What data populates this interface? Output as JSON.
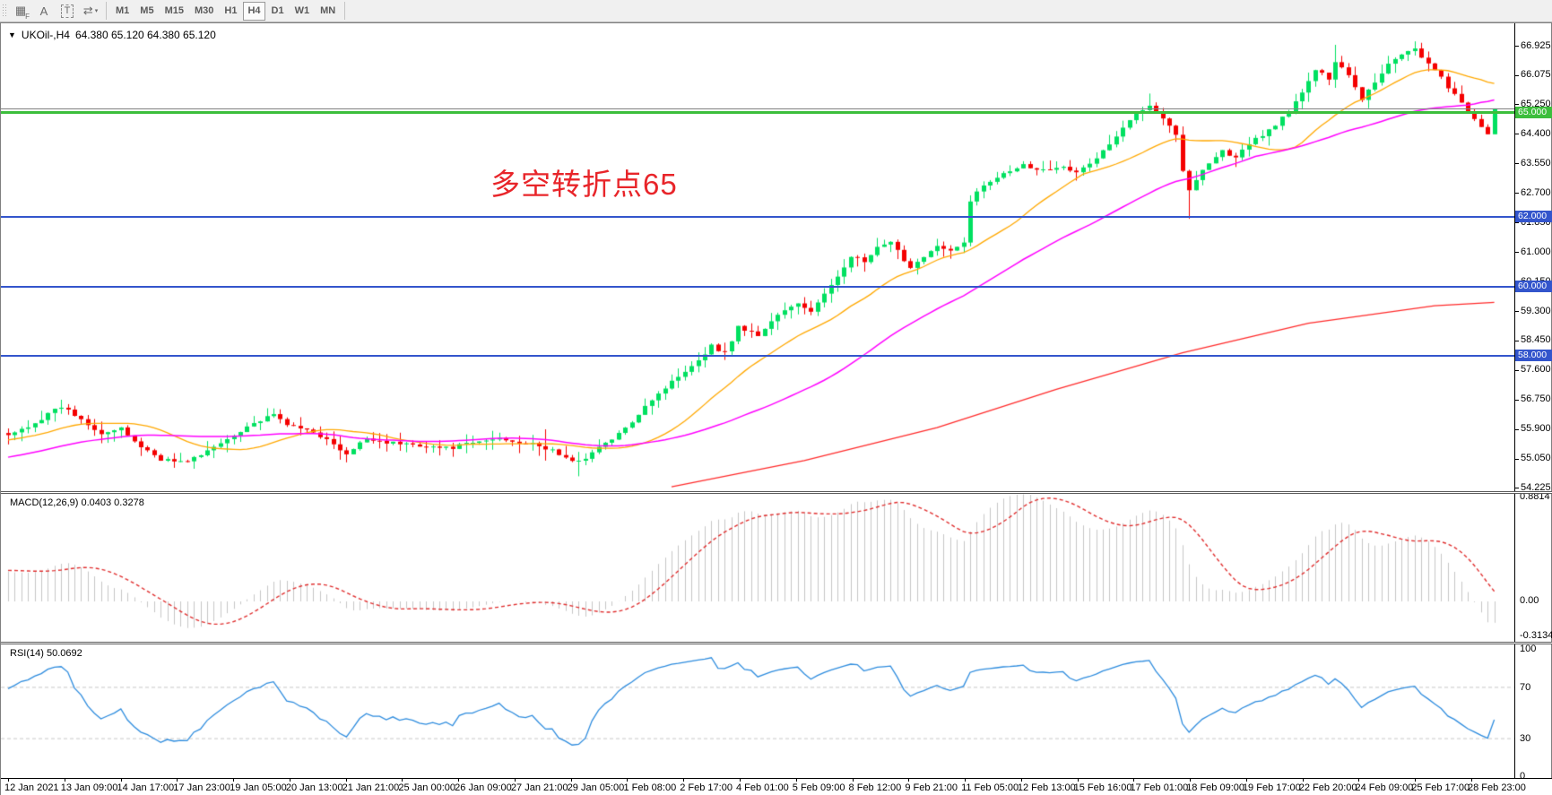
{
  "toolbar": {
    "icons": [
      {
        "name": "chart-grid-icon",
        "glyph": "▦",
        "sub": "F"
      },
      {
        "name": "text-a-icon",
        "glyph": "A",
        "sub": ""
      },
      {
        "name": "text-label-icon",
        "glyph": "T",
        "sub": ""
      },
      {
        "name": "arrange-arrows-icon",
        "glyph": "⇄",
        "sub": "▾"
      }
    ],
    "timeframes": [
      {
        "label": "M1",
        "active": false
      },
      {
        "label": "M5",
        "active": false
      },
      {
        "label": "M15",
        "active": false
      },
      {
        "label": "M30",
        "active": false
      },
      {
        "label": "H1",
        "active": false
      },
      {
        "label": "H4",
        "active": true
      },
      {
        "label": "D1",
        "active": false
      },
      {
        "label": "W1",
        "active": false
      },
      {
        "label": "MN",
        "active": false
      }
    ]
  },
  "chart": {
    "title_symbol": "UKOil-,H4",
    "title_ohlc": "64.380 65.120 64.380 65.120",
    "dropdown_glyph": "▼",
    "annotation": {
      "text": "多空转折点65",
      "color": "#e8252a"
    }
  },
  "price_axis": {
    "ticks": [
      "66.925",
      "66.075",
      "65.250",
      "64.400",
      "63.550",
      "62.700",
      "61.850",
      "61.000",
      "60.150",
      "59.300",
      "58.450",
      "57.600",
      "56.750",
      "55.900",
      "55.050",
      "54.225"
    ]
  },
  "line_tags": {
    "green_65": "65.000",
    "blue_62": "62.000",
    "blue_60": "60.000",
    "blue_58": "58.000"
  },
  "macd_panel": {
    "label": "MACD(12,26,9) 0.0403 0.3278",
    "axis": [
      "0.8814",
      "0.00",
      "-0.3134"
    ]
  },
  "rsi_panel": {
    "label": "RSI(14) 50.0692",
    "axis": [
      "100",
      "70",
      "30",
      "0"
    ]
  },
  "time_axis": {
    "labels": [
      "12 Jan 2021",
      "13 Jan 09:00",
      "14 Jan 17:00",
      "17 Jan 23:00",
      "19 Jan 05:00",
      "20 Jan 13:00",
      "21 Jan 21:00",
      "25 Jan 00:00",
      "26 Jan 09:00",
      "27 Jan 21:00",
      "29 Jan 05:00",
      "1 Feb 08:00",
      "2 Feb 17:00",
      "4 Feb 01:00",
      "5 Feb 09:00",
      "8 Feb 12:00",
      "9 Feb 21:00",
      "11 Feb 05:00",
      "12 Feb 13:00",
      "15 Feb 16:00",
      "17 Feb 01:00",
      "18 Feb 09:00",
      "19 Feb 17:00",
      "22 Feb 20:00",
      "24 Feb 09:00",
      "25 Feb 17:00",
      "28 Feb 23:00"
    ]
  },
  "chart_data": {
    "type": "candlestick",
    "symbol": "UKOil-",
    "timeframe": "H4",
    "current_bar": {
      "open": 64.38,
      "high": 65.12,
      "low": 64.38,
      "close": 65.12
    },
    "candle_count": 225,
    "price_anchors": [
      [
        0,
        55.7
      ],
      [
        4,
        56.1
      ],
      [
        8,
        56.55
      ],
      [
        11,
        56.2
      ],
      [
        14,
        55.8
      ],
      [
        17,
        55.9
      ],
      [
        20,
        55.4
      ],
      [
        23,
        55.05
      ],
      [
        26,
        54.95
      ],
      [
        29,
        55.15
      ],
      [
        32,
        55.5
      ],
      [
        36,
        56.0
      ],
      [
        40,
        56.3
      ],
      [
        43,
        55.95
      ],
      [
        46,
        55.85
      ],
      [
        49,
        55.45
      ],
      [
        51,
        55.15
      ],
      [
        54,
        55.65
      ],
      [
        58,
        55.5
      ],
      [
        62,
        55.45
      ],
      [
        66,
        55.35
      ],
      [
        70,
        55.5
      ],
      [
        74,
        55.65
      ],
      [
        78,
        55.5
      ],
      [
        82,
        55.3
      ],
      [
        85,
        54.95
      ],
      [
        87,
        55.1
      ],
      [
        90,
        55.5
      ],
      [
        93,
        55.9
      ],
      [
        96,
        56.6
      ],
      [
        99,
        57.1
      ],
      [
        102,
        57.6
      ],
      [
        104,
        57.9
      ],
      [
        106,
        58.3
      ],
      [
        108,
        58.1
      ],
      [
        110,
        58.85
      ],
      [
        113,
        58.6
      ],
      [
        116,
        59.2
      ],
      [
        119,
        59.5
      ],
      [
        121,
        59.3
      ],
      [
        124,
        60.0
      ],
      [
        127,
        60.9
      ],
      [
        129,
        60.7
      ],
      [
        131,
        61.1
      ],
      [
        133,
        61.25
      ],
      [
        136,
        60.55
      ],
      [
        138,
        60.9
      ],
      [
        140,
        61.15
      ],
      [
        142,
        61.0
      ],
      [
        144,
        61.25
      ],
      [
        145,
        62.5
      ],
      [
        147,
        62.9
      ],
      [
        150,
        63.3
      ],
      [
        153,
        63.5
      ],
      [
        156,
        63.35
      ],
      [
        159,
        63.5
      ],
      [
        161,
        63.25
      ],
      [
        164,
        63.7
      ],
      [
        167,
        64.3
      ],
      [
        170,
        65.0
      ],
      [
        172,
        65.25
      ],
      [
        174,
        64.85
      ],
      [
        176,
        64.4
      ],
      [
        177,
        63.3
      ],
      [
        178,
        62.75
      ],
      [
        180,
        63.4
      ],
      [
        183,
        63.9
      ],
      [
        185,
        63.7
      ],
      [
        187,
        64.1
      ],
      [
        190,
        64.5
      ],
      [
        193,
        65.0
      ],
      [
        195,
        65.6
      ],
      [
        197,
        66.2
      ],
      [
        199,
        66.0
      ],
      [
        200,
        66.5
      ],
      [
        202,
        66.1
      ],
      [
        204,
        65.4
      ],
      [
        206,
        65.9
      ],
      [
        208,
        66.4
      ],
      [
        210,
        66.7
      ],
      [
        212,
        66.85
      ],
      [
        214,
        66.4
      ],
      [
        216,
        66.0
      ],
      [
        218,
        65.5
      ],
      [
        220,
        65.0
      ],
      [
        222,
        64.6
      ],
      [
        223,
        64.38
      ],
      [
        224,
        65.12
      ]
    ],
    "wick_overrides": {
      "8": {
        "high": 56.75
      },
      "40": {
        "high": 56.5
      },
      "81": {
        "high": 55.9,
        "low": 55.0
      },
      "86": {
        "low": 54.55
      },
      "172": {
        "high": 65.55
      },
      "178": {
        "low": 61.95
      },
      "200": {
        "high": 66.95
      },
      "212": {
        "high": 67.05
      },
      "224": {
        "high": 65.12,
        "low": 64.38
      }
    },
    "exact_closes": {
      "223": 64.38,
      "224": 65.12
    },
    "prehistory": {
      "count": 60,
      "from": 53.6,
      "to": 55.9
    },
    "bull_color": "#00e060",
    "bear_color": "#f40000",
    "y_ticks": [
      66.925,
      66.075,
      65.25,
      64.4,
      63.55,
      62.7,
      61.85,
      61.0,
      60.15,
      59.3,
      58.45,
      57.6,
      56.75,
      55.9,
      55.05,
      54.225
    ],
    "horizontal_lines": [
      {
        "price": 65.12,
        "color": "#808080",
        "width": 1,
        "label": ""
      },
      {
        "price": 65.0,
        "color": "#3cbe3c",
        "width": 3,
        "label": "65.000"
      },
      {
        "price": 62.0,
        "color": "#3355cc",
        "width": 2,
        "label": "62.000"
      },
      {
        "price": 60.0,
        "color": "#3355cc",
        "width": 2,
        "label": "60.000"
      },
      {
        "price": 58.0,
        "color": "#3355cc",
        "width": 2,
        "label": "58.000"
      }
    ],
    "moving_averages": [
      {
        "name": "ma-fast",
        "period": 18,
        "color": "#ffa800"
      },
      {
        "name": "ma-mid",
        "period": 44,
        "color": "#ff00ff"
      },
      {
        "name": "ma-slow",
        "color": "#ff2a2a",
        "anchors": [
          [
            100,
            54.25
          ],
          [
            120,
            55.0
          ],
          [
            140,
            55.95
          ],
          [
            158,
            57.05
          ],
          [
            177,
            58.1
          ],
          [
            196,
            58.95
          ],
          [
            215,
            59.45
          ],
          [
            224,
            59.55
          ]
        ]
      }
    ],
    "macd": {
      "fast": 12,
      "slow": 26,
      "signal": 9,
      "current": 0.0403,
      "current_signal": 0.3278,
      "bar_color": "#c6c6c6",
      "signal_color": "#e03030",
      "axis_max": 0.8814,
      "axis_min": -0.3134
    },
    "rsi": {
      "period": 14,
      "current": 50.0692,
      "color": "#2e8cde",
      "levels": [
        70,
        30
      ],
      "level_color": "#c8c8c8",
      "range": [
        0,
        100
      ]
    }
  }
}
